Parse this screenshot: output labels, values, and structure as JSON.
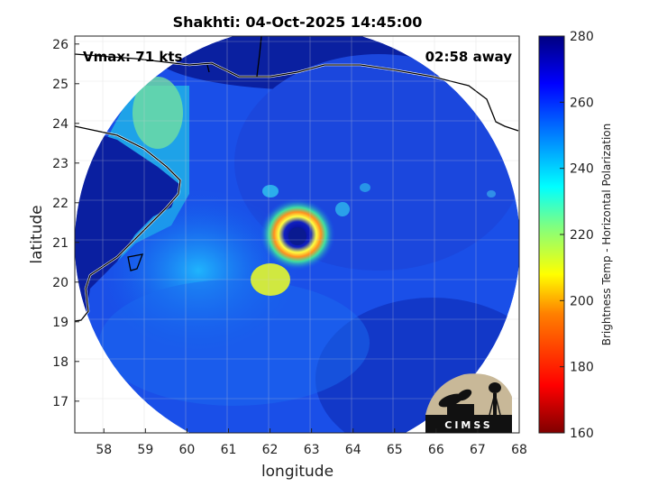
{
  "map": {
    "title": "Shakhti: 04-Oct-2025 14:45:00",
    "vmax_text": "Vmax: 71 kts",
    "time_away_text": "02:58 away",
    "xlabel": "longitude",
    "ylabel": "latitude",
    "lon_ticks": [
      "58",
      "59",
      "60",
      "61",
      "62",
      "63",
      "64",
      "65",
      "66",
      "67",
      "68"
    ],
    "lat_ticks": [
      "17",
      "18",
      "19",
      "20",
      "21",
      "22",
      "23",
      "24",
      "25",
      "26"
    ],
    "lon_range": [
      57.3,
      68.0
    ],
    "lat_range": [
      16.2,
      26.2
    ],
    "storm_center": {
      "lon": 62.6,
      "lat": 21.0
    }
  },
  "colorbar": {
    "label": "Brightness Temp - Horizontal Polarization",
    "ticks": [
      "160",
      "180",
      "200",
      "220",
      "240",
      "260",
      "280"
    ],
    "range": [
      160,
      280
    ],
    "colors": [
      "#800000",
      "#ff0000",
      "#ff8000",
      "#ffff00",
      "#80ff80",
      "#00ffff",
      "#0080ff",
      "#0000ff",
      "#000080"
    ]
  },
  "logo": {
    "text": "CIMSS"
  }
}
